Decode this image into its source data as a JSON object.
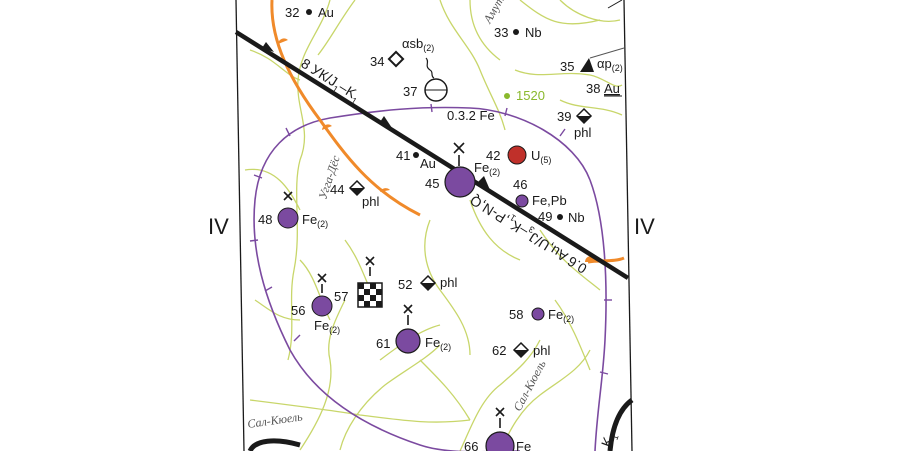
{
  "roman_left": "IV",
  "roman_right": "IV",
  "faults": {
    "main_label_1": "8 УК/J",
    "main_label_1_sub": "1",
    "main_label_1_tail": "–K",
    "main_label_1_tail_sub": "1",
    "main_label_2": "0.3.2 Fe",
    "main_label_3": "0.6 Au,U/J",
    "main_label_3_sub": "3",
    "main_label_3_tail": "–K",
    "main_label_3_tail_sub": "1",
    "main_label_3_end": ",P-N,Q",
    "right_label": "K",
    "right_label_sub": "1"
  },
  "rivers": {
    "ugga": "Угга-Дёс",
    "amut": "Амут",
    "sal_kyuel_left": "Сал-Кюель",
    "sal_kyuel_right": "Сал-Кюель"
  },
  "elevation": "1520",
  "occurrences": [
    {
      "id": "32",
      "mineral": "Au",
      "sub": ""
    },
    {
      "id": "33",
      "mineral": "Nb",
      "sub": ""
    },
    {
      "id": "34",
      "mineral": "αsb",
      "sub": "(2)"
    },
    {
      "id": "35",
      "mineral": "αp",
      "sub": "(2)"
    },
    {
      "id": "37",
      "mineral": "",
      "sub": ""
    },
    {
      "id": "38",
      "mineral": "Au",
      "sub": ""
    },
    {
      "id": "39",
      "mineral": "phl",
      "sub": ""
    },
    {
      "id": "41",
      "mineral": "Au",
      "sub": ""
    },
    {
      "id": "42",
      "mineral": "U",
      "sub": "(5)"
    },
    {
      "id": "44",
      "mineral": "phl",
      "sub": ""
    },
    {
      "id": "45",
      "mineral": "Fe",
      "sub": "(2)"
    },
    {
      "id": "46",
      "mineral": "Fe,Pb",
      "sub": ""
    },
    {
      "id": "48",
      "mineral": "Fe",
      "sub": "(2)"
    },
    {
      "id": "49",
      "mineral": "Nb",
      "sub": ""
    },
    {
      "id": "52",
      "mineral": "phl",
      "sub": ""
    },
    {
      "id": "56",
      "mineral": "Fe",
      "sub": "(2)"
    },
    {
      "id": "57",
      "mineral": "",
      "sub": ""
    },
    {
      "id": "58",
      "mineral": "Fe",
      "sub": "(2)"
    },
    {
      "id": "61",
      "mineral": "Fe",
      "sub": "(2)"
    },
    {
      "id": "62",
      "mineral": "phl",
      "sub": ""
    },
    {
      "id": "66",
      "mineral": "Fe",
      "sub": ""
    }
  ],
  "colors": {
    "purple": "#7b4aa0",
    "orange": "#f08a2a",
    "red": "#c0302a",
    "river": "#c8d66a",
    "black": "#1a1a1a",
    "green_dot": "#8ab92d"
  }
}
